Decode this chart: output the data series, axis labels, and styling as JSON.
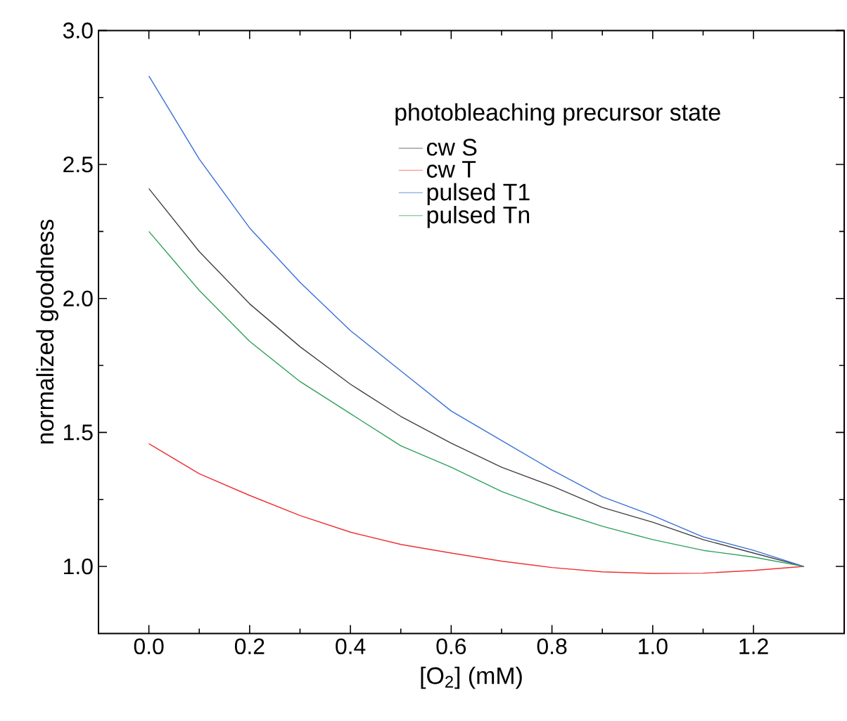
{
  "chart_data": {
    "type": "line",
    "xlabel": "[O$_{2}$] (mM)",
    "ylabel": "normalized goodness",
    "legend_title": "photobleaching precursor state",
    "x": [
      0.0,
      0.1,
      0.2,
      0.3,
      0.4,
      0.5,
      0.6,
      0.7,
      0.8,
      0.9,
      1.0,
      1.1,
      1.2,
      1.3
    ],
    "series": [
      {
        "name": "cw S",
        "color": "#404040",
        "values": [
          2.41,
          2.175,
          1.98,
          1.82,
          1.68,
          1.56,
          1.46,
          1.37,
          1.3,
          1.22,
          1.165,
          1.1,
          1.05,
          1.0
        ]
      },
      {
        "name": "cw T",
        "color": "#f03030",
        "values": [
          1.458,
          1.346,
          1.265,
          1.19,
          1.128,
          1.082,
          1.05,
          1.02,
          0.996,
          0.98,
          0.974,
          0.975,
          0.985,
          1.0
        ]
      },
      {
        "name": "pulsed T1",
        "color": "#3a6fd8",
        "values": [
          2.83,
          2.52,
          2.263,
          2.06,
          1.88,
          1.73,
          1.58,
          1.47,
          1.36,
          1.26,
          1.19,
          1.11,
          1.06,
          1.0
        ]
      },
      {
        "name": "pulsed Tn",
        "color": "#2ca05a",
        "values": [
          2.25,
          2.03,
          1.84,
          1.69,
          1.57,
          1.45,
          1.37,
          1.28,
          1.21,
          1.15,
          1.1,
          1.06,
          1.035,
          1.0
        ]
      }
    ],
    "xlim": [
      -0.1,
      1.38
    ],
    "ylim": [
      0.75,
      3.0
    ],
    "xticks": [
      {
        "value": 0,
        "label": "0.0"
      },
      0.2,
      0.4,
      0.6,
      0.8,
      {
        "value": 1,
        "label": "1.0"
      },
      1.2
    ],
    "yticks": [
      {
        "value": 1,
        "label": "1.0"
      },
      1.5,
      {
        "value": 2,
        "label": "2.0"
      },
      2.5,
      {
        "value": 3,
        "label": "3.0"
      }
    ],
    "grid": false,
    "legend": "top right",
    "marker": "none",
    "line_style": "solid"
  }
}
